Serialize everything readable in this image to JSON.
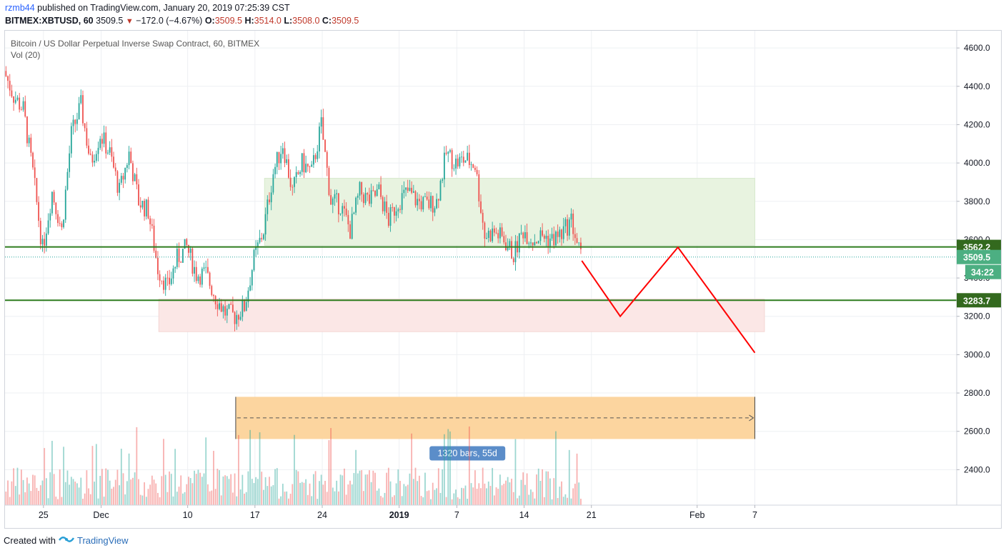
{
  "header": {
    "author": "rzmb44",
    "published_text": "published on TradingView.com, January 20, 2019 07:25:39 CST",
    "symbol": "BITMEX:XBTUSD, 60",
    "last": "3509.5",
    "change": "−172.0 (−4.67%)",
    "o_label": "O:",
    "o_value": "3509.5",
    "h_label": "H:",
    "h_value": "3514.0",
    "l_label": "L:",
    "l_value": "3508.0",
    "c_label": "C:",
    "c_value": "3509.5"
  },
  "legend": {
    "title": "Bitcoin / US Dollar Perpetual Inverse Swap Contract, 60, BITMEX",
    "volume": "Vol (20)"
  },
  "footer": {
    "created_with": "Created with",
    "brand": "TradingView"
  },
  "colors": {
    "up": "#26a69a",
    "down": "#ef5350",
    "support_line": "#2e7d1f",
    "projection": "#ff0000",
    "range_box": "#e8f3e0",
    "demand_box": "#fbe7e6",
    "measure_box": "#fcd39a",
    "price_label": "#4caf82"
  },
  "chart_data": {
    "type": "candlestick",
    "title": "Bitcoin / US Dollar Perpetual Inverse Swap Contract, 60, BITMEX",
    "y_ticks": [
      "4600.0",
      "4400.0",
      "4200.0",
      "4000.0",
      "3800.0",
      "3600.0",
      "3400.0",
      "3200.0",
      "3000.0",
      "2800.0",
      "2600.0",
      "2400.0"
    ],
    "y_tick_values": [
      4600,
      4400,
      4200,
      4000,
      3800,
      3600,
      3400,
      3200,
      3000,
      2800,
      2600,
      2400
    ],
    "ylim": [
      2215,
      4690
    ],
    "x_ticks": [
      "25",
      "Dec",
      "10",
      "17",
      "24",
      "2019",
      "7",
      "14",
      "21",
      "Feb",
      "7"
    ],
    "x_tick_dates": [
      "2018-11-25",
      "2018-12-01",
      "2018-12-10",
      "2018-12-17",
      "2018-12-24",
      "2019-01-01",
      "2019-01-07",
      "2019-01-14",
      "2019-01-21",
      "2019-02-01",
      "2019-02-07"
    ],
    "x_range": [
      "2018-11-21",
      "2019-02-28"
    ],
    "price_anchors": [
      [
        "2018-11-21",
        4480
      ],
      [
        "2018-11-22",
        4350
      ],
      [
        "2018-11-23",
        4280
      ],
      [
        "2018-11-24",
        3950
      ],
      [
        "2018-11-25",
        3550
      ],
      [
        "2018-11-26",
        3850
      ],
      [
        "2018-11-27",
        3650
      ],
      [
        "2018-11-28",
        4150
      ],
      [
        "2018-11-29",
        4300
      ],
      [
        "2018-11-30",
        4000
      ],
      [
        "2018-12-01",
        4150
      ],
      [
        "2018-12-02",
        4050
      ],
      [
        "2018-12-03",
        3850
      ],
      [
        "2018-12-04",
        4050
      ],
      [
        "2018-12-05",
        3800
      ],
      [
        "2018-12-06",
        3750
      ],
      [
        "2018-12-07",
        3450
      ],
      [
        "2018-12-08",
        3350
      ],
      [
        "2018-12-09",
        3500
      ],
      [
        "2018-12-10",
        3560
      ],
      [
        "2018-12-11",
        3420
      ],
      [
        "2018-12-12",
        3420
      ],
      [
        "2018-12-13",
        3300
      ],
      [
        "2018-12-14",
        3220
      ],
      [
        "2018-12-15",
        3200
      ],
      [
        "2018-12-16",
        3250
      ],
      [
        "2018-12-17",
        3500
      ],
      [
        "2018-12-18",
        3650
      ],
      [
        "2018-12-19",
        3950
      ],
      [
        "2018-12-20",
        4100
      ],
      [
        "2018-12-21",
        3850
      ],
      [
        "2018-12-22",
        4000
      ],
      [
        "2018-12-23",
        3950
      ],
      [
        "2018-12-24",
        4200
      ],
      [
        "2018-12-25",
        3800
      ],
      [
        "2018-12-26",
        3780
      ],
      [
        "2018-12-27",
        3650
      ],
      [
        "2018-12-28",
        3850
      ],
      [
        "2018-12-29",
        3800
      ],
      [
        "2018-12-30",
        3850
      ],
      [
        "2018-12-31",
        3700
      ],
      [
        "2019-01-01",
        3800
      ],
      [
        "2019-01-02",
        3850
      ],
      [
        "2019-01-03",
        3800
      ],
      [
        "2019-01-04",
        3780
      ],
      [
        "2019-01-05",
        3800
      ],
      [
        "2019-01-06",
        4050
      ],
      [
        "2019-01-07",
        4000
      ],
      [
        "2019-01-08",
        4020
      ],
      [
        "2019-01-09",
        3990
      ],
      [
        "2019-01-10",
        3620
      ],
      [
        "2019-01-11",
        3640
      ],
      [
        "2019-01-12",
        3600
      ],
      [
        "2019-01-13",
        3520
      ],
      [
        "2019-01-14",
        3650
      ],
      [
        "2019-01-15",
        3600
      ],
      [
        "2019-01-16",
        3620
      ],
      [
        "2019-01-17",
        3600
      ],
      [
        "2019-01-18",
        3630
      ],
      [
        "2019-01-19",
        3700
      ],
      [
        "2019-01-20",
        3509.5
      ]
    ],
    "horizontal_lines": [
      {
        "price": 3562.2,
        "label": "3562.2"
      },
      {
        "price": 3283.7,
        "label": "3283.7"
      }
    ],
    "last_price_label": "3509.5",
    "countdown_label": "34:22",
    "range_box": {
      "date_from": "2018-12-18",
      "date_to": "2019-02-07",
      "price_from": 3570,
      "price_to": 3920
    },
    "demand_box": {
      "date_from": "2018-12-07",
      "date_to": "2019-02-08",
      "price_from": 3120,
      "price_to": 3290
    },
    "projection_path": [
      [
        "2019-01-20",
        3490
      ],
      [
        "2019-01-24",
        3200
      ],
      [
        "2019-01-30",
        3560
      ],
      [
        "2019-02-07",
        3010
      ]
    ],
    "measure_box": {
      "date_from": "2018-12-15",
      "date_to": "2019-02-07",
      "price_from": 2560,
      "price_to": 2780,
      "label": "1320 bars, 55d"
    },
    "volume": {
      "name": "Vol (20)"
    }
  }
}
